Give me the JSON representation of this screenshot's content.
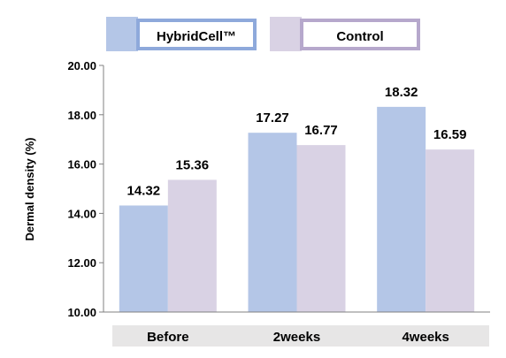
{
  "chart_data": {
    "type": "bar",
    "categories": [
      "Before",
      "2weeks",
      "4weeks"
    ],
    "series": [
      {
        "name": "HybridCell™",
        "values": [
          14.32,
          17.27,
          18.32
        ],
        "color": "#b4c6e7",
        "legend_border": "#8ea9db"
      },
      {
        "name": "Control",
        "values": [
          15.36,
          16.77,
          16.59
        ],
        "color": "#d9d2e4",
        "legend_border": "#b6a8cc"
      }
    ],
    "value_labels": [
      [
        "14.32",
        "17.27",
        "18.32"
      ],
      [
        "15.36",
        "16.77",
        "16.59"
      ]
    ],
    "yticks": [
      "10.00",
      "12.00",
      "14.00",
      "16.00",
      "18.00",
      "20.00"
    ],
    "ylim": [
      10,
      20
    ],
    "ylabel": "Dermal density (%)",
    "xlabel": "",
    "title": "",
    "legend_position": "top",
    "grid": false,
    "category_band_color": "#e7e6e6"
  }
}
